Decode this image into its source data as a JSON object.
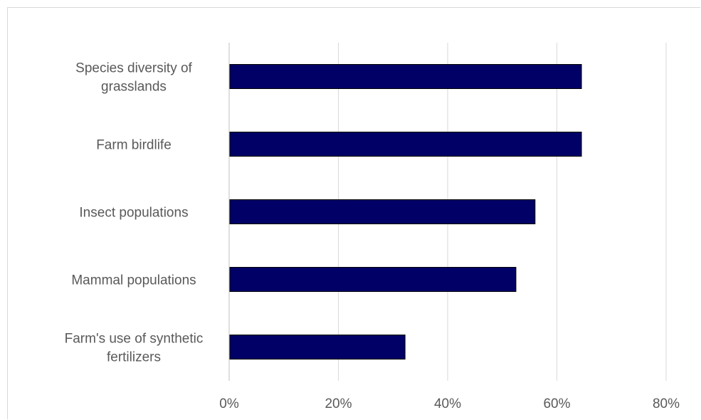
{
  "chart_data": {
    "type": "bar",
    "orientation": "horizontal",
    "title": "",
    "xlabel": "",
    "ylabel": "",
    "categories": [
      [
        "Species diversity of",
        "grasslands"
      ],
      [
        "Farm birdlife"
      ],
      [
        "Insect populations"
      ],
      [
        "Mammal populations"
      ],
      [
        "Farm's use of synthetic",
        "fertilizers"
      ]
    ],
    "values": [
      0.645,
      0.645,
      0.56,
      0.525,
      0.322
    ],
    "xlim": [
      0,
      0.8
    ],
    "x_ticks": [
      0,
      0.2,
      0.4,
      0.6,
      0.8
    ],
    "x_tick_labels": [
      "0%",
      "20%",
      "40%",
      "60%",
      "80%"
    ],
    "grid": "vertical",
    "legend": "none",
    "colors": {
      "bar_fill": "#000066",
      "bar_stroke": "#000000",
      "grid": "#d9d9d9",
      "axis": "#bfbfbf",
      "text": "#595959"
    }
  }
}
